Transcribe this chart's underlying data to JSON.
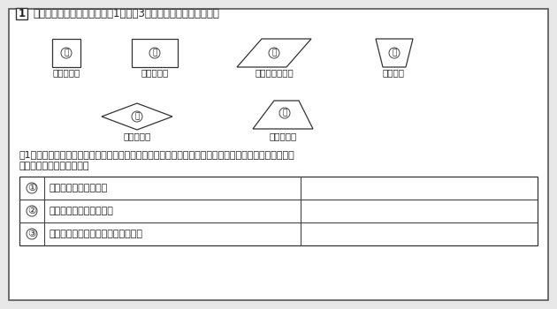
{
  "bg_color": "#e8e8e8",
  "content_bg": "#ffffff",
  "border_color": "#555555",
  "title_text": "いろいろな図形について，（1）～（3）の問題に答えましょう。",
  "question_text1": "（1）　上のⓐ～ⓕの図形の中から，次のような性質をもっている四角形を選び，その記号をすべて表の",
  "question_text2": "　　　中にかきましょう。",
  "captions": [
    "（正方形）",
    "（長方形）",
    "（平行四辺形）",
    "（台形）",
    "（ひし形）",
    "（四角形）"
  ],
  "labels": [
    "ⓐ",
    "ⓑ",
    "ⓒ",
    "ⓓ",
    "ⓔ",
    "ⓕ"
  ],
  "table_nums": [
    "①",
    "②",
    "③"
  ],
  "table_texts": [
    "平行な辺が２組ある。",
    "対角線の長さが等しい。",
    "向かい合った角の大きさが等しい。"
  ],
  "font_size_main": 8.5,
  "font_size_caption": 7.5,
  "font_size_label": 6.5,
  "font_size_question": 8.0,
  "font_size_table": 8.0,
  "font_size_title_num": 8.5
}
